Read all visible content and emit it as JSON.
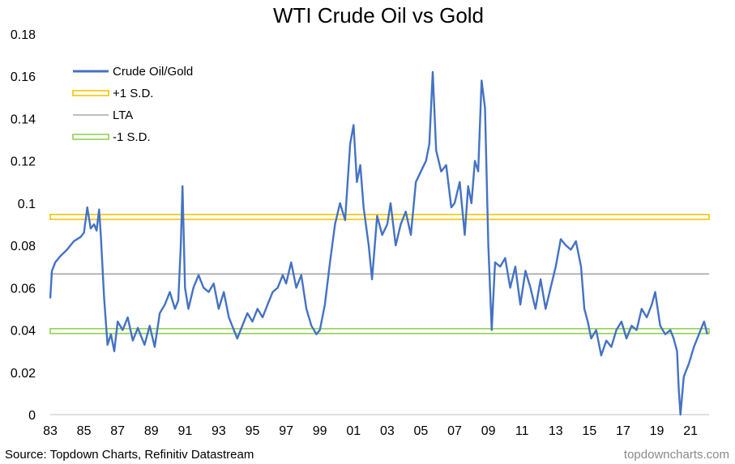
{
  "chart_data": {
    "type": "line",
    "title": "WTI Crude Oil vs Gold",
    "source": "Source: Topdown Charts, Refinitiv Datastream",
    "watermark": "topdowncharts.com",
    "ylim": [
      0,
      0.18
    ],
    "xlim": [
      1983,
      2022.1
    ],
    "grid": false,
    "legend_position": "top-left",
    "y_ticks": [
      {
        "value": 0,
        "label": "0"
      },
      {
        "value": 0.02,
        "label": "0.02"
      },
      {
        "value": 0.04,
        "label": "0.04"
      },
      {
        "value": 0.06,
        "label": "0.06"
      },
      {
        "value": 0.08,
        "label": "0.08"
      },
      {
        "value": 0.1,
        "label": "0.1"
      },
      {
        "value": 0.12,
        "label": "0.12"
      },
      {
        "value": 0.14,
        "label": "0.14"
      },
      {
        "value": 0.16,
        "label": "0.16"
      },
      {
        "value": 0.18,
        "label": "0.18"
      }
    ],
    "x_ticks": [
      {
        "value": 1983,
        "label": "83"
      },
      {
        "value": 1985,
        "label": "85"
      },
      {
        "value": 1987,
        "label": "87"
      },
      {
        "value": 1989,
        "label": "89"
      },
      {
        "value": 1991,
        "label": "91"
      },
      {
        "value": 1993,
        "label": "93"
      },
      {
        "value": 1995,
        "label": "95"
      },
      {
        "value": 1997,
        "label": "97"
      },
      {
        "value": 1999,
        "label": "99"
      },
      {
        "value": 2001,
        "label": "01"
      },
      {
        "value": 2003,
        "label": "03"
      },
      {
        "value": 2005,
        "label": "05"
      },
      {
        "value": 2007,
        "label": "07"
      },
      {
        "value": 2009,
        "label": "09"
      },
      {
        "value": 2011,
        "label": "11"
      },
      {
        "value": 2013,
        "label": "13"
      },
      {
        "value": 2015,
        "label": "15"
      },
      {
        "value": 2017,
        "label": "17"
      },
      {
        "value": 2019,
        "label": "19"
      },
      {
        "value": 2021,
        "label": "21"
      }
    ],
    "reference_lines": [
      {
        "name": "+1 S.D.",
        "value": 0.0935,
        "color": "#f5c400",
        "style": "double"
      },
      {
        "name": "LTA",
        "value": 0.0665,
        "color": "#a6a6a6",
        "style": "single"
      },
      {
        "name": "-1 S.D.",
        "value": 0.0395,
        "color": "#8fd14f",
        "style": "double"
      }
    ],
    "series": [
      {
        "name": "Crude Oil/Gold",
        "color": "#4472c4",
        "x": [
          1983.0,
          1983.1,
          1983.3,
          1983.6,
          1984.0,
          1984.4,
          1984.8,
          1985.0,
          1985.2,
          1985.4,
          1985.6,
          1985.75,
          1985.9,
          1986.0,
          1986.2,
          1986.4,
          1986.6,
          1986.8,
          1987.0,
          1987.3,
          1987.6,
          1987.9,
          1988.2,
          1988.6,
          1988.9,
          1989.2,
          1989.5,
          1989.8,
          1990.1,
          1990.4,
          1990.6,
          1990.75,
          1990.85,
          1991.0,
          1991.2,
          1991.5,
          1991.8,
          1992.1,
          1992.4,
          1992.7,
          1993.0,
          1993.3,
          1993.6,
          1993.9,
          1994.1,
          1994.4,
          1994.7,
          1995.0,
          1995.3,
          1995.6,
          1995.9,
          1996.2,
          1996.5,
          1996.8,
          1997.0,
          1997.3,
          1997.6,
          1997.9,
          1998.2,
          1998.5,
          1998.8,
          1999.0,
          1999.3,
          1999.6,
          1999.9,
          2000.2,
          2000.5,
          2000.8,
          2001.0,
          2001.2,
          2001.4,
          2001.6,
          2001.9,
          2002.1,
          2002.4,
          2002.7,
          2003.0,
          2003.2,
          2003.5,
          2003.8,
          2004.1,
          2004.4,
          2004.7,
          2005.0,
          2005.3,
          2005.5,
          2005.7,
          2005.9,
          2006.2,
          2006.5,
          2006.8,
          2007.0,
          2007.3,
          2007.6,
          2007.8,
          2008.0,
          2008.2,
          2008.4,
          2008.6,
          2008.8,
          2009.0,
          2009.2,
          2009.4,
          2009.7,
          2010.0,
          2010.3,
          2010.6,
          2010.9,
          2011.2,
          2011.5,
          2011.8,
          2012.1,
          2012.4,
          2012.7,
          2013.0,
          2013.3,
          2013.6,
          2013.9,
          2014.2,
          2014.5,
          2014.7,
          2014.9,
          2015.1,
          2015.4,
          2015.7,
          2016.0,
          2016.3,
          2016.6,
          2016.9,
          2017.2,
          2017.5,
          2017.8,
          2018.1,
          2018.4,
          2018.7,
          2018.9,
          2019.2,
          2019.5,
          2019.8,
          2020.0,
          2020.2,
          2020.3,
          2020.4,
          2020.6,
          2020.9,
          2021.2,
          2021.5,
          2021.8,
          2022.0
        ],
        "values": [
          0.055,
          0.068,
          0.072,
          0.075,
          0.078,
          0.082,
          0.084,
          0.086,
          0.098,
          0.088,
          0.09,
          0.087,
          0.097,
          0.085,
          0.055,
          0.033,
          0.038,
          0.03,
          0.044,
          0.04,
          0.046,
          0.035,
          0.041,
          0.033,
          0.042,
          0.032,
          0.048,
          0.052,
          0.058,
          0.05,
          0.054,
          0.08,
          0.108,
          0.06,
          0.05,
          0.06,
          0.066,
          0.06,
          0.058,
          0.062,
          0.05,
          0.058,
          0.046,
          0.04,
          0.036,
          0.042,
          0.048,
          0.044,
          0.05,
          0.046,
          0.052,
          0.058,
          0.06,
          0.066,
          0.062,
          0.072,
          0.06,
          0.066,
          0.05,
          0.042,
          0.038,
          0.04,
          0.052,
          0.072,
          0.09,
          0.1,
          0.092,
          0.128,
          0.137,
          0.11,
          0.118,
          0.098,
          0.08,
          0.064,
          0.094,
          0.085,
          0.09,
          0.1,
          0.08,
          0.09,
          0.096,
          0.085,
          0.11,
          0.115,
          0.12,
          0.128,
          0.162,
          0.125,
          0.115,
          0.118,
          0.098,
          0.1,
          0.11,
          0.085,
          0.108,
          0.1,
          0.12,
          0.115,
          0.158,
          0.145,
          0.08,
          0.04,
          0.072,
          0.07,
          0.074,
          0.06,
          0.07,
          0.052,
          0.068,
          0.06,
          0.05,
          0.064,
          0.05,
          0.06,
          0.07,
          0.083,
          0.08,
          0.078,
          0.082,
          0.07,
          0.05,
          0.044,
          0.036,
          0.04,
          0.028,
          0.035,
          0.032,
          0.04,
          0.044,
          0.036,
          0.042,
          0.04,
          0.05,
          0.046,
          0.052,
          0.058,
          0.042,
          0.038,
          0.04,
          0.036,
          0.03,
          0.012,
          0.0,
          0.018,
          0.024,
          0.032,
          0.038,
          0.044,
          0.038
        ]
      }
    ]
  }
}
